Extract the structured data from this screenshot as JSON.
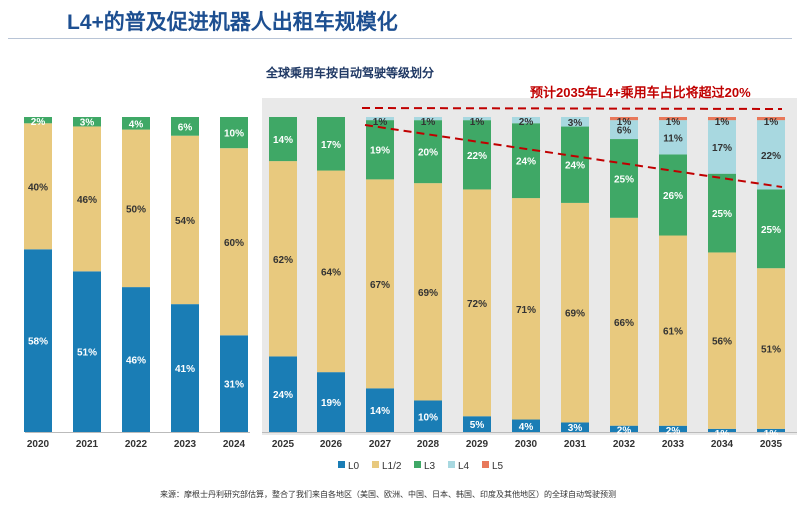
{
  "header": {
    "title": "L4+的普及促进机器人出租车规模化"
  },
  "annotation": "预计2035年L4+乘用车占比将超过20%",
  "source": "来源：摩根士丹利研究部估算，整合了我们来自各地区（美国、欧洲、中国、日本、韩国、印度及其他地区）的全球自动驾驶预测",
  "chart_data": {
    "type": "bar",
    "stacked": true,
    "title": "全球乘用车按自动驾驶等级划分",
    "categories": [
      "2020",
      "2021",
      "2022",
      "2023",
      "2024",
      "2025",
      "2026",
      "2027",
      "2028",
      "2029",
      "2030",
      "2031",
      "2032",
      "2033",
      "2034",
      "2035"
    ],
    "series": [
      {
        "name": "L0",
        "color": "#1a7db5",
        "values": [
          58,
          51,
          46,
          41,
          31,
          24,
          19,
          14,
          10,
          5,
          4,
          3,
          2,
          2,
          1,
          1
        ]
      },
      {
        "name": "L1/2",
        "color": "#e8c97e",
        "values": [
          40,
          46,
          50,
          54,
          60,
          62,
          64,
          67,
          69,
          72,
          71,
          69,
          66,
          61,
          56,
          51
        ]
      },
      {
        "name": "L3",
        "color": "#3fa866",
        "values": [
          2,
          3,
          4,
          6,
          10,
          14,
          17,
          19,
          20,
          22,
          24,
          24,
          25,
          26,
          25,
          25
        ]
      },
      {
        "name": "L4",
        "color": "#a8d8e0",
        "values": [
          0,
          0,
          0,
          0,
          0,
          0,
          0,
          1,
          1,
          1,
          2,
          3,
          6,
          11,
          17,
          22
        ]
      },
      {
        "name": "L5",
        "color": "#e8785a",
        "values": [
          0,
          0,
          0,
          0,
          0,
          0,
          0,
          0,
          0,
          0,
          0,
          0,
          1,
          1,
          1,
          1
        ]
      }
    ],
    "forecast_shaded_from": "2025",
    "legend_position": "bottom",
    "ylim": [
      0,
      100
    ]
  }
}
